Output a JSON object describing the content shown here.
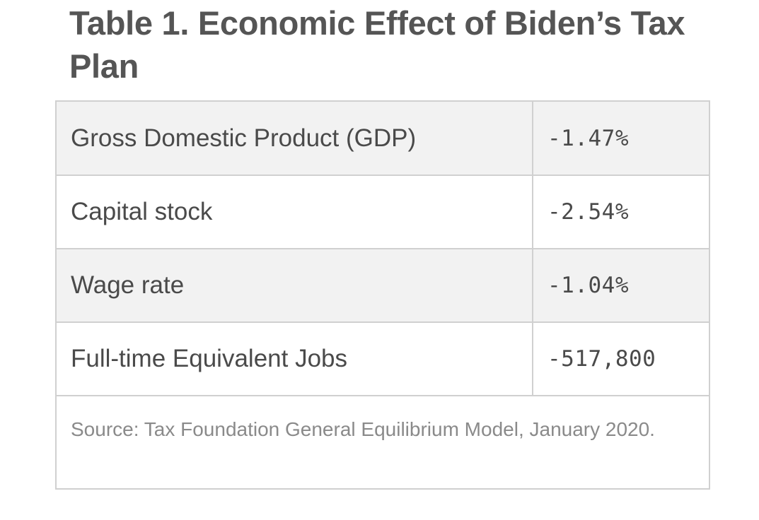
{
  "table": {
    "title": "Table 1. Economic Effect of Biden’s Tax Plan",
    "rows": [
      {
        "label": "Gross Domestic Product (GDP)",
        "value": "-1.47%"
      },
      {
        "label": "Capital stock",
        "value": "-2.54%"
      },
      {
        "label": "Wage rate",
        "value": "-1.04%"
      },
      {
        "label": "Full-time Equivalent Jobs",
        "value": "-517,800"
      }
    ],
    "source": "Source: Tax Foundation General Equilibrium Model, January 2020."
  },
  "colors": {
    "shaded_row": "#f2f2f2",
    "border": "#d0d0d0",
    "title_text": "#555555",
    "source_text": "#8a8a8a"
  }
}
